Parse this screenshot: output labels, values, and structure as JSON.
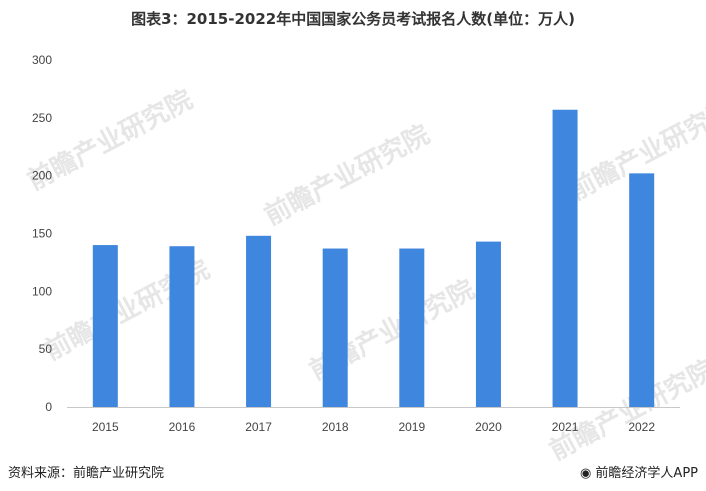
{
  "chart_data": {
    "type": "bar",
    "title": "图表3：2015-2022年中国国家公务员考试报名人数(单位：万人)",
    "categories": [
      "2015",
      "2016",
      "2017",
      "2018",
      "2019",
      "2020",
      "2021",
      "2022"
    ],
    "values": [
      140,
      139,
      148,
      137,
      137,
      143,
      257,
      202
    ],
    "ylim": [
      0,
      300
    ],
    "yticks": [
      "0",
      "50",
      "100",
      "150",
      "200",
      "250",
      "300"
    ],
    "xlabel": "",
    "ylabel": "",
    "grid": false,
    "bar_color": "#3f86de"
  },
  "footer": {
    "source": "资料来源：前瞻产业研究院",
    "credit": "前瞻经济学人APP"
  },
  "watermark": "前瞻产业研究院"
}
